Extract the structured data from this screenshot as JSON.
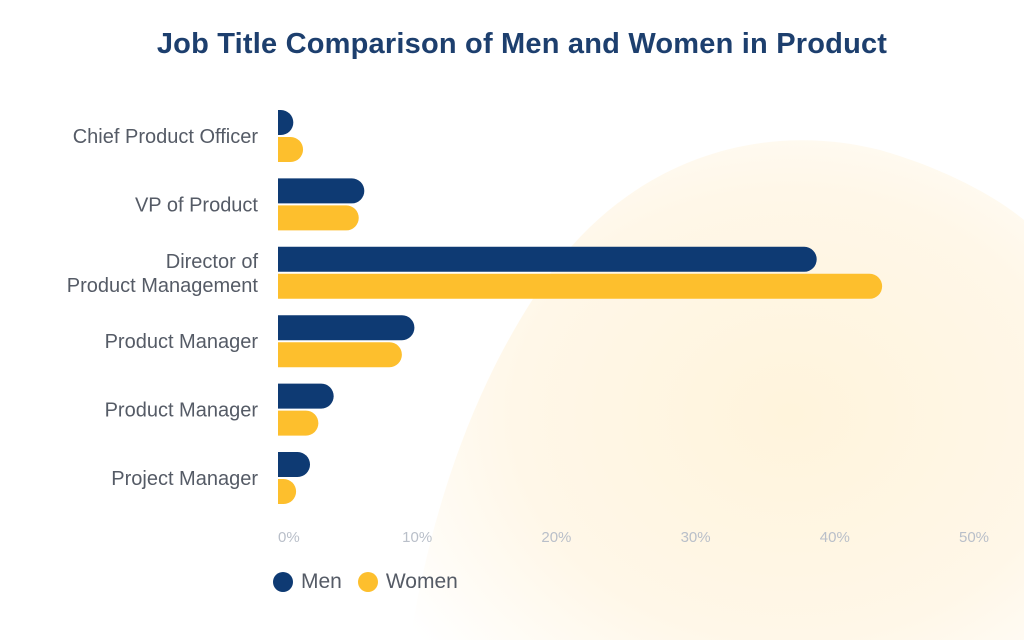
{
  "chart_data": {
    "type": "bar",
    "orientation": "horizontal",
    "title": "Job Title Comparison of Men and Women in Product",
    "categories": [
      [
        "Chief Product Officer"
      ],
      [
        "VP of Product"
      ],
      [
        "Director of",
        "Product Management"
      ],
      [
        "Product Manager"
      ],
      [
        "Product Manager"
      ],
      [
        "Project Manager"
      ]
    ],
    "series": [
      {
        "name": "Men",
        "color": "#0e3a73",
        "values": [
          1.1,
          6.2,
          38.7,
          9.8,
          4.0,
          2.3
        ]
      },
      {
        "name": "Women",
        "color": "#fdbf2d",
        "values": [
          1.8,
          5.8,
          43.4,
          8.9,
          2.9,
          1.3
        ]
      }
    ],
    "xlim": [
      0,
      50
    ],
    "xticks": [
      "0%",
      "10%",
      "20%",
      "30%",
      "40%",
      "50%"
    ],
    "grid": false,
    "legend_position": "bottom-left"
  }
}
